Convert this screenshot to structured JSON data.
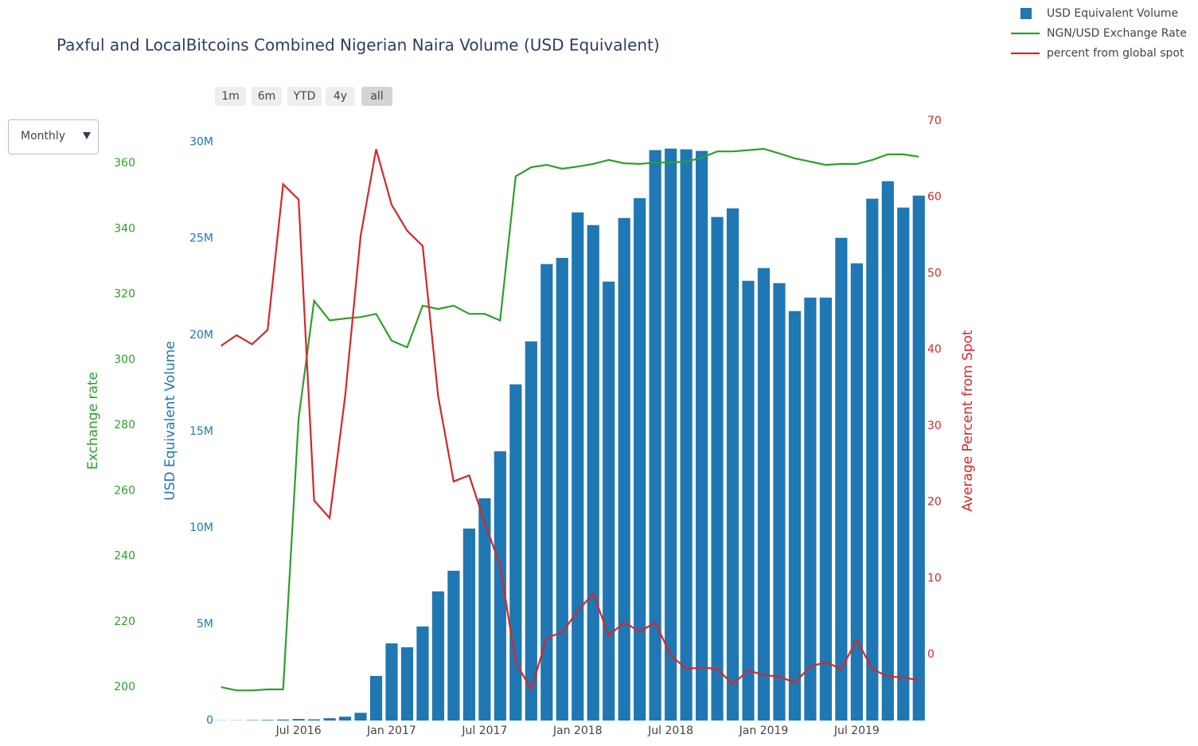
{
  "chart_data": {
    "type": "bar",
    "title": "Paxful and LocalBitcoins Combined Nigerian Naira Volume (USD Equivalent)",
    "x": [
      "2016-02",
      "2016-03",
      "2016-04",
      "2016-05",
      "2016-06",
      "2016-07",
      "2016-08",
      "2016-09",
      "2016-10",
      "2016-11",
      "2016-12",
      "2017-01",
      "2017-02",
      "2017-03",
      "2017-04",
      "2017-05",
      "2017-06",
      "2017-07",
      "2017-08",
      "2017-09",
      "2017-10",
      "2017-11",
      "2017-12",
      "2018-01",
      "2018-02",
      "2018-03",
      "2018-04",
      "2018-05",
      "2018-06",
      "2018-07",
      "2018-08",
      "2018-09",
      "2018-10",
      "2018-11",
      "2018-12",
      "2019-01",
      "2019-02",
      "2019-03",
      "2019-04",
      "2019-05",
      "2019-06",
      "2019-07",
      "2019-08",
      "2019-09",
      "2019-10",
      "2019-11"
    ],
    "xlim": [
      "2016-02",
      "2019-11"
    ],
    "xticks": [
      {
        "value": "2016-07",
        "label": "Jul 2016"
      },
      {
        "value": "2017-01",
        "label": "Jan 2017"
      },
      {
        "value": "2017-07",
        "label": "Jul 2017"
      },
      {
        "value": "2018-01",
        "label": "Jan 2018"
      },
      {
        "value": "2018-07",
        "label": "Jul 2018"
      },
      {
        "value": "2019-01",
        "label": "Jan 2019"
      },
      {
        "value": "2019-07",
        "label": "Jul 2019"
      }
    ],
    "ylabel": "USD Equivalent Volume",
    "ylim": [
      0,
      31100000
    ],
    "yticks": [
      0,
      {
        "value": 5000000,
        "label": "5M"
      },
      {
        "value": 10000000,
        "label": "10M"
      },
      {
        "value": 15000000,
        "label": "15M"
      },
      {
        "value": 20000000,
        "label": "20M"
      },
      {
        "value": 25000000,
        "label": "25M"
      },
      {
        "value": 30000000,
        "label": "30M"
      }
    ],
    "y2label": "Average Percent from Spot",
    "y2lim": [
      -8.67,
      70
    ],
    "y2ticks": [
      0,
      10,
      20,
      30,
      40,
      50,
      60,
      70
    ],
    "y3label": "Exchange rate",
    "y3lim": [
      189.8,
      372.9
    ],
    "y3ticks": [
      200,
      220,
      240,
      260,
      280,
      300,
      320,
      340,
      360
    ],
    "grid": false,
    "legend": "top-right",
    "series": [
      {
        "name": "USD Equivalent Volume",
        "type": "bar",
        "axis": "y",
        "color": "#1f77b4",
        "values": [
          10000,
          10000,
          20000,
          30000,
          50000,
          80000,
          60000,
          120000,
          200000,
          400000,
          2310000,
          4000000,
          3800000,
          4880000,
          6700000,
          7770000,
          9960000,
          11530000,
          13970000,
          17440000,
          19670000,
          23680000,
          24000000,
          26360000,
          25700000,
          22770000,
          26070000,
          27100000,
          29590000,
          29670000,
          29630000,
          29550000,
          26120000,
          26570000,
          22810000,
          23470000,
          22690000,
          21240000,
          21940000,
          21940000,
          25040000,
          23720000,
          27070000,
          27980000,
          26610000,
          27230000
        ]
      },
      {
        "name": "NGN/USD Exchange Rate",
        "type": "line",
        "axis": "y3",
        "color": "#2ca02c",
        "values": [
          200,
          199,
          199,
          199.3,
          199.3,
          282,
          318,
          312,
          312.6,
          313,
          314,
          305.8,
          303.8,
          316.5,
          315.5,
          316.5,
          314,
          314,
          312,
          356,
          358.8,
          359.5,
          358.3,
          359,
          359.8,
          361,
          360,
          359.8,
          360.2,
          360.2,
          360.5,
          361.7,
          363.6,
          363.6,
          364,
          364.4,
          363,
          361.5,
          360.5,
          359.5,
          359.8,
          359.8,
          361,
          362.7,
          362.7,
          362
        ]
      },
      {
        "name": "percent from global spot",
        "type": "line",
        "axis": "y2",
        "color": "#d62728",
        "values": [
          40.5,
          41.9,
          40.7,
          42.6,
          61.7,
          59.7,
          20.2,
          17.9,
          33.9,
          54.9,
          66.3,
          59,
          55.6,
          53.6,
          33.9,
          22.7,
          23.5,
          17.3,
          11.7,
          -1,
          -4.6,
          2.2,
          2.9,
          5.7,
          8,
          2.5,
          4.2,
          3,
          4.2,
          -0.1,
          -1.9,
          -1.7,
          -1.9,
          -3.9,
          -2.1,
          -2.7,
          -2.9,
          -3.7,
          -1.6,
          -1,
          -1.9,
          1.9,
          -1.9,
          -2.9,
          -3,
          -3.4
        ]
      }
    ]
  },
  "controls": {
    "range_buttons": [
      "1m",
      "6m",
      "YTD",
      "4y",
      "all"
    ],
    "active_button": 4,
    "dropdown": "Monthly"
  }
}
